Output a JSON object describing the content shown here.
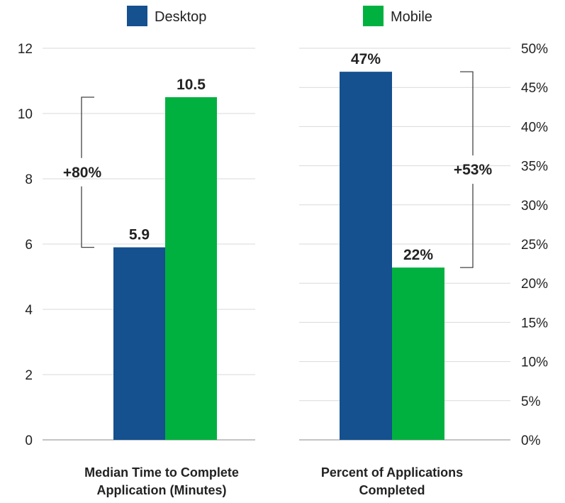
{
  "chart_data": [
    {
      "type": "bar",
      "title": "Median Time to Complete Application (Minutes)",
      "title_lines": [
        "Median Time to Complete",
        "Application (Minutes)"
      ],
      "series": [
        {
          "name": "Desktop",
          "values": [
            5.9
          ]
        },
        {
          "name": "Mobile",
          "values": [
            10.5
          ]
        }
      ],
      "data_labels": [
        "5.9",
        "10.5"
      ],
      "ylim": [
        0,
        12
      ],
      "yticks": [
        0,
        2,
        4,
        6,
        8,
        10,
        12
      ],
      "ytick_labels": [
        "0",
        "2",
        "4",
        "6",
        "8",
        "10",
        "12"
      ],
      "axis_side": "left",
      "grid": true,
      "annotation": "+80%"
    },
    {
      "type": "bar",
      "title": "Percent of Applications Completed",
      "title_lines": [
        "Percent of Applications",
        "Completed"
      ],
      "series": [
        {
          "name": "Desktop",
          "values": [
            47
          ]
        },
        {
          "name": "Mobile",
          "values": [
            22
          ]
        }
      ],
      "data_labels": [
        "47%",
        "22%"
      ],
      "ylim": [
        0,
        50
      ],
      "yticks": [
        0,
        5,
        10,
        15,
        20,
        25,
        30,
        35,
        40,
        45,
        50
      ],
      "ytick_labels": [
        "0%",
        "5%",
        "10%",
        "15%",
        "20%",
        "25%",
        "30%",
        "35%",
        "40%",
        "45%",
        "50%"
      ],
      "axis_side": "right",
      "grid": true,
      "annotation": "+53%"
    }
  ],
  "legend": {
    "placement": "top-center",
    "items": [
      {
        "label": "Desktop",
        "color": "#15508f"
      },
      {
        "label": "Mobile",
        "color": "#00b140"
      }
    ]
  },
  "colors": {
    "desktop": "#15508f",
    "mobile": "#00b140",
    "grid": "#d9d9d9",
    "text": "#222222",
    "bracket": "#444444"
  }
}
